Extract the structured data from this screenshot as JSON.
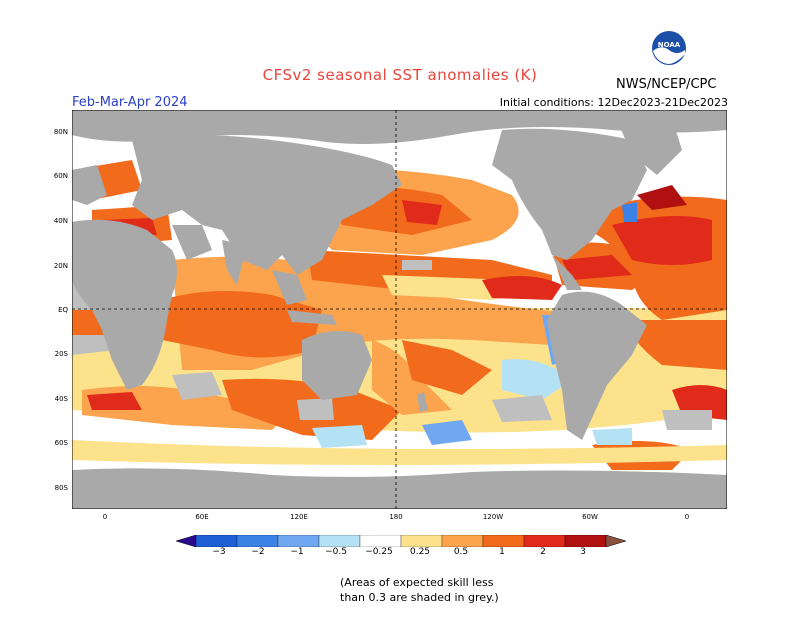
{
  "title": "CFSv2 seasonal SST anomalies (K)",
  "period": "Feb-Mar-Apr 2024",
  "initial_conditions": "Initial conditions: 12Dec2023-21Dec2023",
  "agency": "NWS/NCEP/CPC",
  "logo_text": "NOAA",
  "lat_labels": [
    "80N",
    "60N",
    "40N",
    "20N",
    "EQ",
    "20S",
    "40S",
    "60S",
    "80S"
  ],
  "lon_labels": [
    "0",
    "60E",
    "120E",
    "180",
    "120W",
    "60W",
    "0"
  ],
  "colorbar": {
    "tick_labels": [
      "−3",
      "−2",
      "−1",
      "−0.5",
      "−0.25",
      "0.25",
      "0.5",
      "1",
      "2",
      "3"
    ],
    "colors": [
      "#2a0a8c",
      "#1f5fd6",
      "#3c82e6",
      "#6fa8f0",
      "#b5e1f5",
      "#ffffff",
      "#fde28c",
      "#fba34d",
      "#f26a1c",
      "#e02a1a",
      "#b01010",
      "#8a5040"
    ]
  },
  "note_line1": "(Areas of expected skill less",
  "note_line2": "than 0.3 are shaded in grey.)",
  "colors": {
    "land": "#a9a9a9",
    "grey_skill": "#bfbfbf",
    "ocean_neutral": "#ffffff"
  }
}
